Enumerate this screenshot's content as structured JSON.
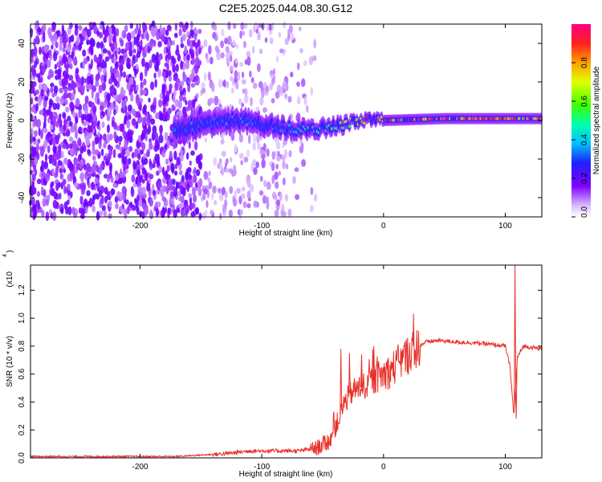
{
  "title": "C2E5.2025.044.08.30.G12",
  "chart_data": [
    {
      "type": "heatmap",
      "xlabel": "Height of straight line (km)",
      "ylabel": "Frequency (Hz)",
      "xlim": [
        -290,
        130
      ],
      "ylim": [
        -50,
        50
      ],
      "x_ticks": [
        -200,
        -100,
        0,
        100
      ],
      "y_ticks": [
        -40,
        -20,
        0,
        20,
        40
      ],
      "colorbar": {
        "label": "Normalized spectral amplitude",
        "range": [
          0,
          1
        ],
        "ticks": [
          0.0,
          0.2,
          0.4,
          0.6,
          0.8
        ]
      },
      "ridge": [
        {
          "x": -170,
          "f": -5,
          "amp": 0.4
        },
        {
          "x": -140,
          "f": -1,
          "amp": 0.35
        },
        {
          "x": -120,
          "f": 0,
          "amp": 0.4
        },
        {
          "x": -100,
          "f": -2,
          "amp": 0.35
        },
        {
          "x": -80,
          "f": -4,
          "amp": 0.35
        },
        {
          "x": -60,
          "f": -5,
          "amp": 0.55
        },
        {
          "x": -40,
          "f": -3,
          "amp": 0.6
        },
        {
          "x": -20,
          "f": 0,
          "amp": 0.85
        },
        {
          "x": 0,
          "f": 0,
          "amp": 0.95
        },
        {
          "x": 50,
          "f": 1,
          "amp": 0.95
        },
        {
          "x": 100,
          "f": 1,
          "amp": 0.95
        },
        {
          "x": 130,
          "f": 1,
          "amp": 0.9
        }
      ]
    },
    {
      "type": "line",
      "xlabel": "Height of straight line (km)",
      "ylabel": "SNR (10 * v/v)",
      "y_exponent_label": "(x10",
      "y_exponent": "4",
      "xlim": [
        -290,
        130
      ],
      "ylim": [
        0,
        1.38
      ],
      "x_ticks": [
        -200,
        -100,
        0,
        100
      ],
      "y_ticks": [
        0.0,
        0.2,
        0.4,
        0.6,
        0.8,
        1.0,
        1.2
      ],
      "series": [
        {
          "color": "#e8302a",
          "x": [
            -290,
            -250,
            -200,
            -170,
            -150,
            -130,
            -110,
            -90,
            -70,
            -55,
            -45,
            -38,
            -32,
            -25,
            -15,
            -5,
            5,
            15,
            25,
            35,
            45,
            60,
            80,
            100,
            104,
            107,
            110,
            115,
            130
          ],
          "y": [
            0.01,
            0.01,
            0.01,
            0.01,
            0.02,
            0.03,
            0.05,
            0.05,
            0.05,
            0.07,
            0.12,
            0.25,
            0.4,
            0.48,
            0.52,
            0.58,
            0.62,
            0.7,
            0.78,
            0.83,
            0.84,
            0.83,
            0.82,
            0.8,
            0.65,
            0.3,
            0.72,
            0.8,
            0.78
          ],
          "spikes": [
            {
              "x": -35,
              "y": 0.78
            },
            {
              "x": -28,
              "y": 0.75
            },
            {
              "x": -18,
              "y": 0.74
            },
            {
              "x": -8,
              "y": 0.8
            },
            {
              "x": 108,
              "y": 1.38
            },
            {
              "x": 109,
              "y": 0.28
            }
          ]
        }
      ]
    }
  ]
}
